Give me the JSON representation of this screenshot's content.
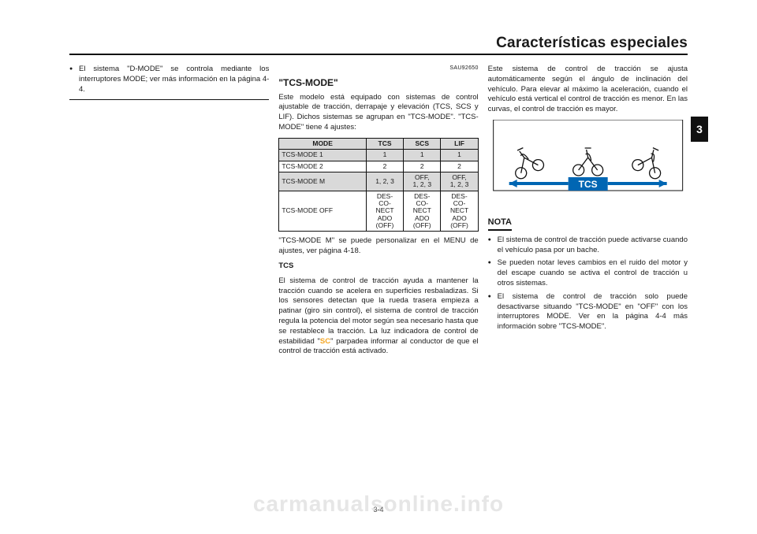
{
  "header": {
    "section_title": "Características especiales",
    "side_tab": "3",
    "page_number": "3-4",
    "watermark": "carmanualsonline.info"
  },
  "col1": {
    "bullet": "El sistema \"D-MODE\" se controla mediante los interruptores MODE; ver más información en la página 4-4."
  },
  "col2": {
    "code": "SAU92650",
    "title": "\"TCS-MODE\"",
    "intro": "Este modelo está equipado con sistemas de control ajustable de tracción, derrapaje y elevación (TCS, SCS y LIF). Dichos sistemas se agrupan en \"TCS-MODE\". \"TCS-MODE\" tiene 4 ajustes:",
    "table": {
      "columns": [
        "MODE",
        "TCS",
        "SCS",
        "LIF"
      ],
      "rows": [
        {
          "shade": true,
          "cells": [
            "TCS-MODE 1",
            "1",
            "1",
            "1"
          ]
        },
        {
          "shade": false,
          "cells": [
            "TCS-MODE 2",
            "2",
            "2",
            "2"
          ]
        },
        {
          "shade": true,
          "cells": [
            "TCS-MODE M",
            "1, 2, 3",
            "OFF,\n1, 2, 3",
            "OFF,\n1, 2, 3"
          ]
        },
        {
          "shade": false,
          "cells": [
            "TCS-MODE OFF",
            "DES-\nCO-\nNECT\nADO\n(OFF)",
            "DES-\nCO-\nNECT\nADO\n(OFF)",
            "DES-\nCO-\nNECT\nADO\n(OFF)"
          ]
        }
      ]
    },
    "after_table": "\"TCS-MODE M\" se puede personalizar en el MENU de ajustes, ver página 4-18.",
    "tcs_head": "TCS",
    "tcs_body_1": "El sistema de control de tracción ayuda a mantener la tracción cuando se acelera en superficies resbaladizas. Si los sensores detectan que la rueda trasera empieza a patinar (giro sin control), el sistema de control de tracción regula la potencia del motor según sea necesario hasta que se restablece la tracción. La luz indicadora de control de estabilidad \"",
    "tcs_sc": "SC",
    "tcs_body_2": "\" parpadea informar al conductor de que el control de tracción está activado."
  },
  "col3": {
    "top": "Este sistema de control de tracción se ajusta automáticamente según el ángulo de inclinación del vehículo. Para elevar al máximo la aceleración, cuando el vehículo está vertical el control de tracción es menor. En las curvas, el control de tracción es mayor.",
    "figure": {
      "label": "TCS",
      "label_bg": "#0066b3",
      "arrow_color": "#0066b3"
    },
    "nota_head": "NOTA",
    "nota_items": [
      "El sistema de control de tracción puede activarse cuando el vehículo pasa por un bache.",
      "Se pueden notar leves cambios en el ruido del motor y del escape cuando se activa el control de tracción u otros sistemas.",
      "El sistema de control de tracción solo puede desactivarse situando \"TCS-MODE\" en \"OFF\" con los interruptores MODE. Ver en la página 4-4 más información sobre \"TCS-MODE\"."
    ]
  }
}
